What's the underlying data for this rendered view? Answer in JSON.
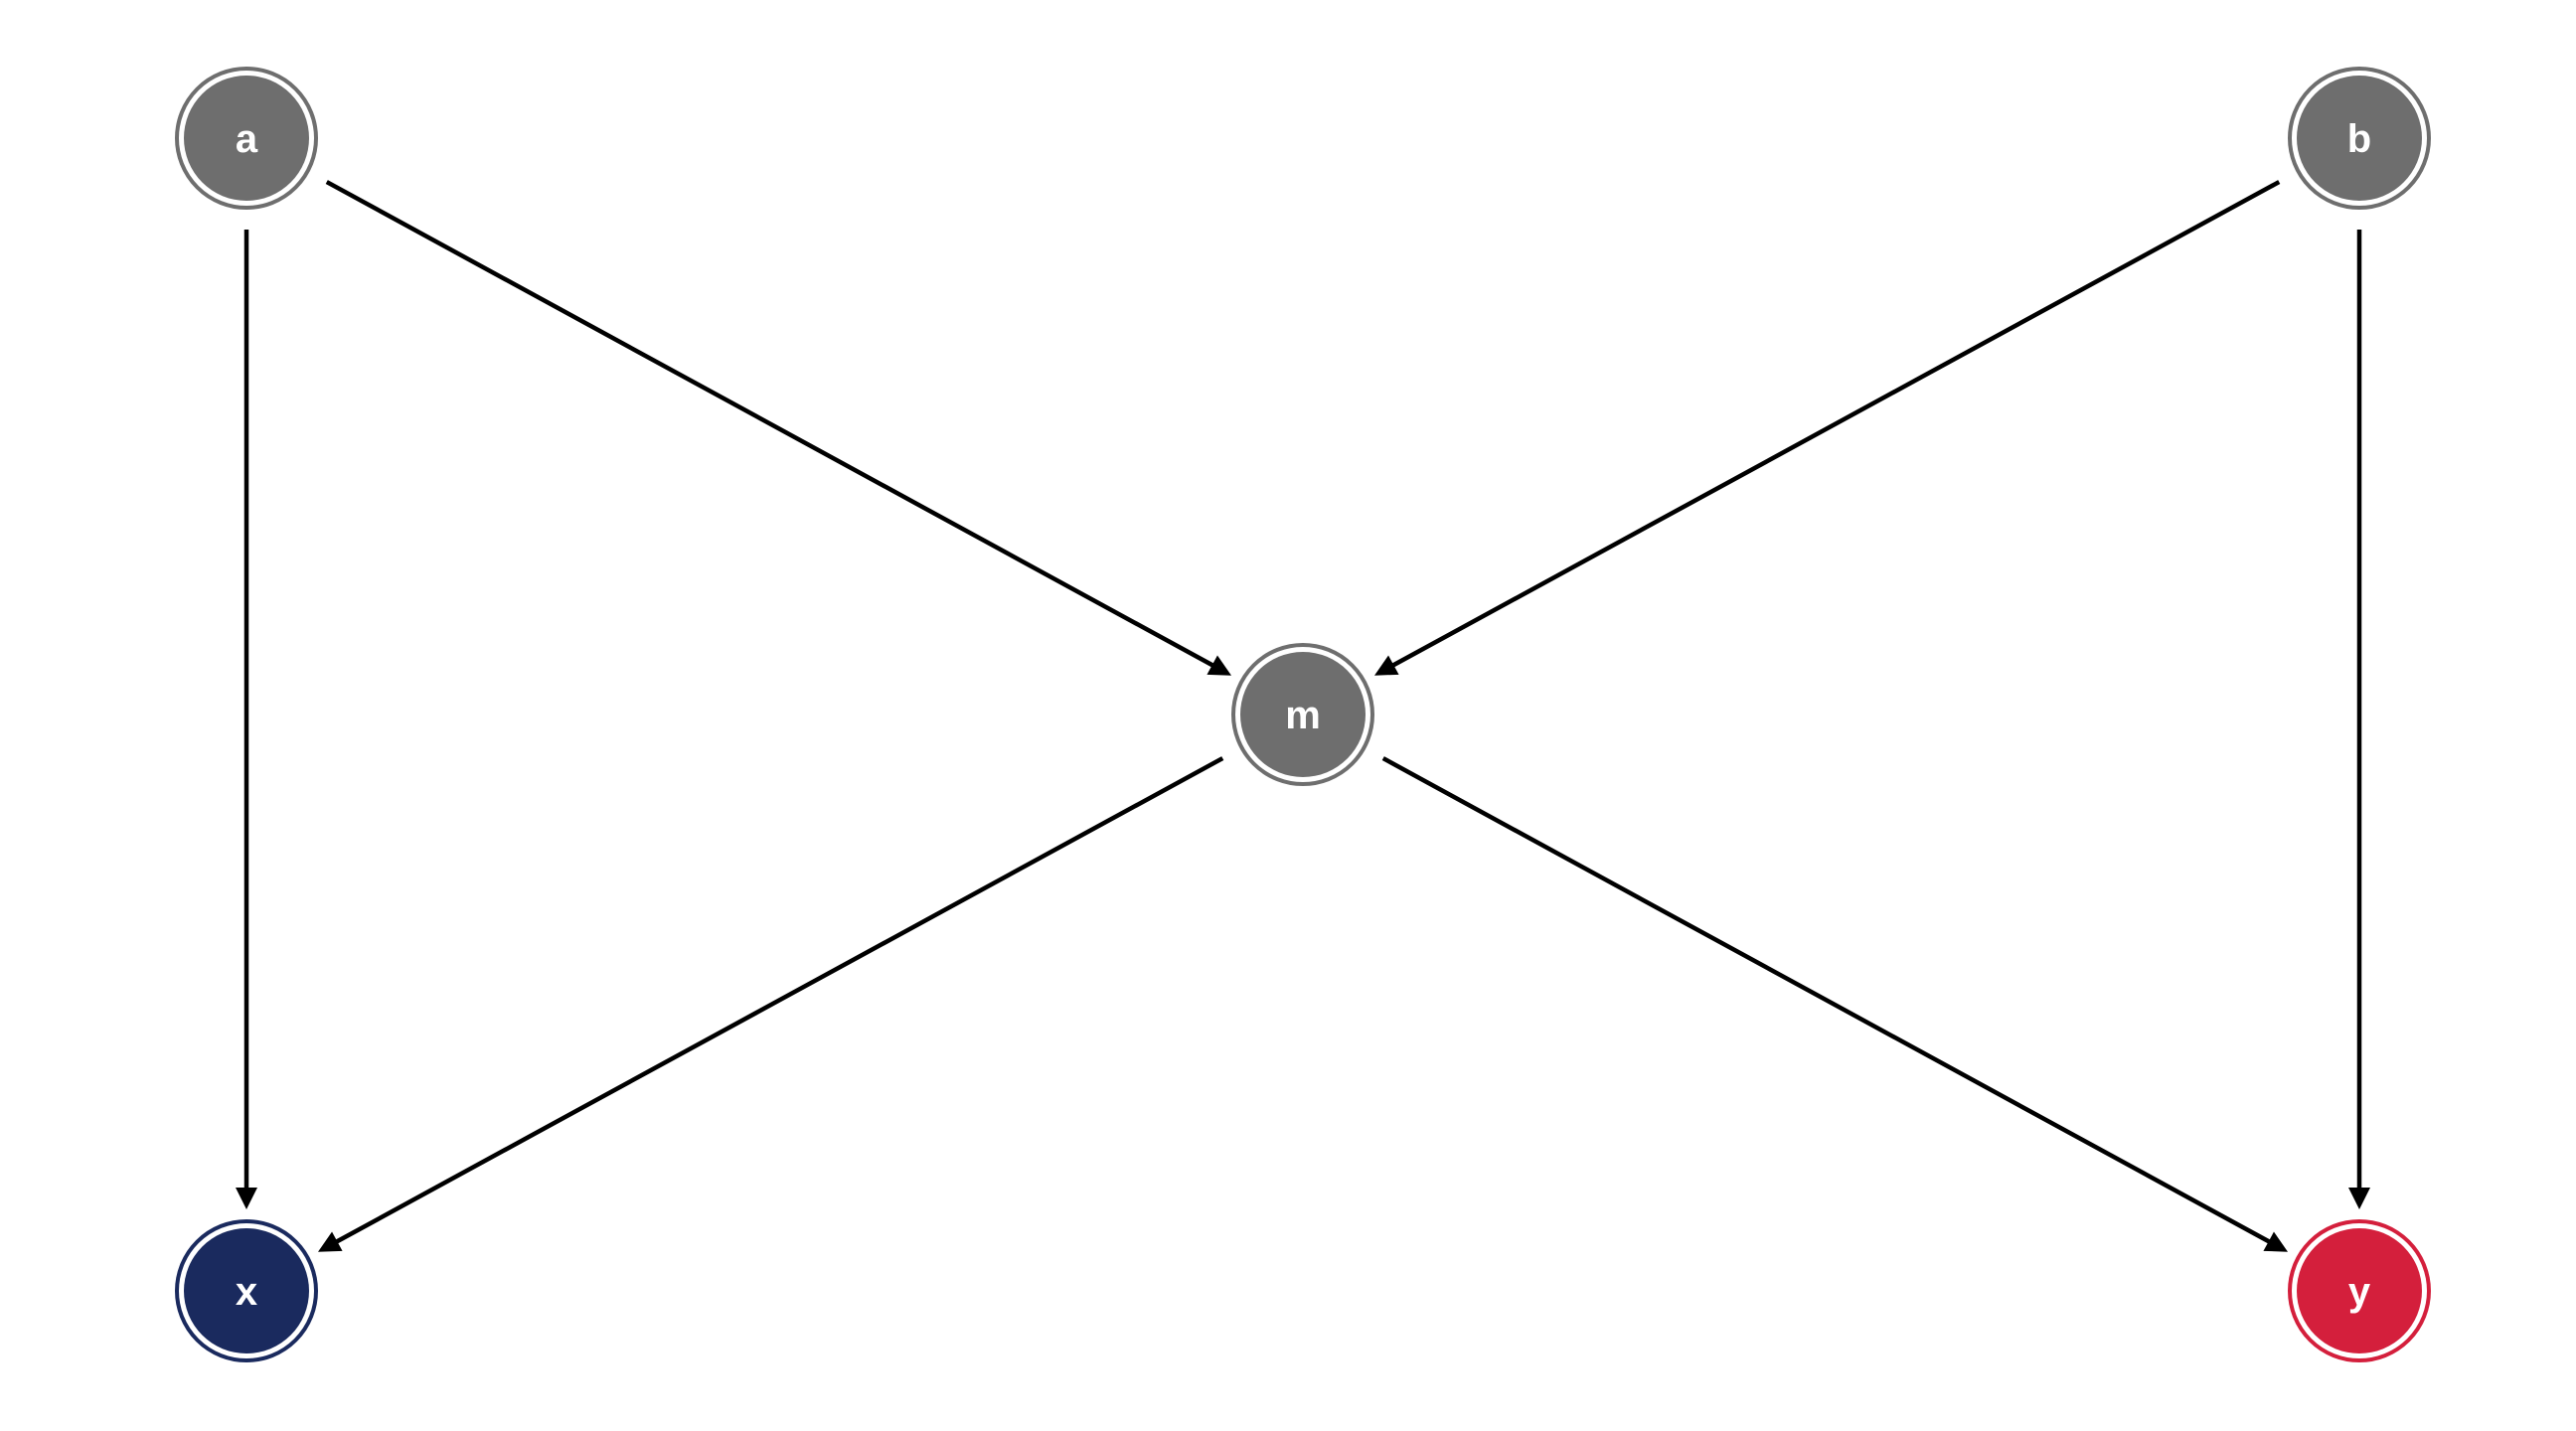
{
  "nodes": [
    {
      "id": "a",
      "label": "a",
      "color": "#6e6e6e"
    },
    {
      "id": "b",
      "label": "b",
      "color": "#6e6e6e"
    },
    {
      "id": "m",
      "label": "m",
      "color": "#6e6e6e"
    },
    {
      "id": "x",
      "label": "x",
      "color": "#1a2a5e"
    },
    {
      "id": "y",
      "label": "y",
      "color": "#d41f3c"
    }
  ],
  "edges": [
    {
      "from": "a",
      "to": "m"
    },
    {
      "from": "a",
      "to": "x"
    },
    {
      "from": "b",
      "to": "m"
    },
    {
      "from": "b",
      "to": "y"
    },
    {
      "from": "m",
      "to": "x"
    },
    {
      "from": "m",
      "to": "y"
    }
  ]
}
